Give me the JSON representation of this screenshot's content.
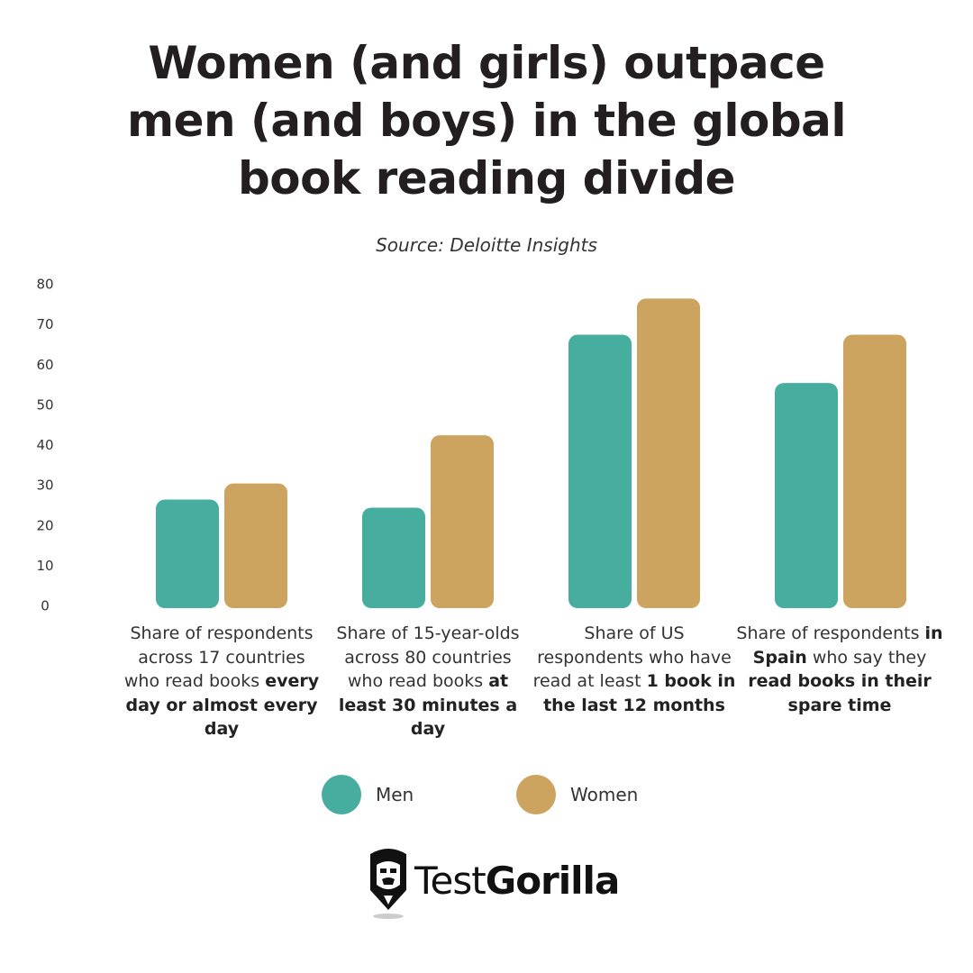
{
  "title_lines": [
    "Women (and girls) outpace",
    "men (and boys) in the global",
    "book reading divide"
  ],
  "source": "Source: Deloitte Insights",
  "colors": {
    "men": "#47ae9f",
    "women": "#cda45f"
  },
  "legend": {
    "men": "Men",
    "women": "Women"
  },
  "logo": {
    "part1": "Test",
    "part2": "Gorilla",
    "icon": "gorilla-icon"
  },
  "category_labels": [
    {
      "normal": "Share of respondents across 17 countries who read books ",
      "bold": "every day or almost every day"
    },
    {
      "normal": "Share of 15-year-olds across 80 countries who read books ",
      "bold": "at least 30 minutes a day"
    },
    {
      "normal": "Share of US respondents who have read at least ",
      "bold": "1 book in the last 12 months"
    },
    {
      "p1": "Share of respondents ",
      "b1": "in Spain",
      "p2": " who say they ",
      "b2": "read books in their spare time"
    }
  ],
  "chart_data": {
    "type": "bar",
    "title": "Women (and girls) outpace men (and boys) in the global book reading divide",
    "subtitle": "Source: Deloitte Insights",
    "categories": [
      "Share of respondents across 17 countries who read books every day or almost every day",
      "Share of 15-year-olds across 80 countries who read books at least 30 minutes a day",
      "Share of US respondents who have read at least 1 book in the last 12 months",
      "Share of respondents in Spain who say they read books in their spare time"
    ],
    "series": [
      {
        "name": "Men",
        "values": [
          27,
          25,
          68,
          56
        ]
      },
      {
        "name": "Women",
        "values": [
          31,
          43,
          77,
          68
        ]
      }
    ],
    "yticks": [
      0,
      10,
      20,
      30,
      40,
      50,
      60,
      70,
      80
    ],
    "ylim": [
      0,
      80
    ],
    "grid": false,
    "legend_position": "bottom"
  }
}
